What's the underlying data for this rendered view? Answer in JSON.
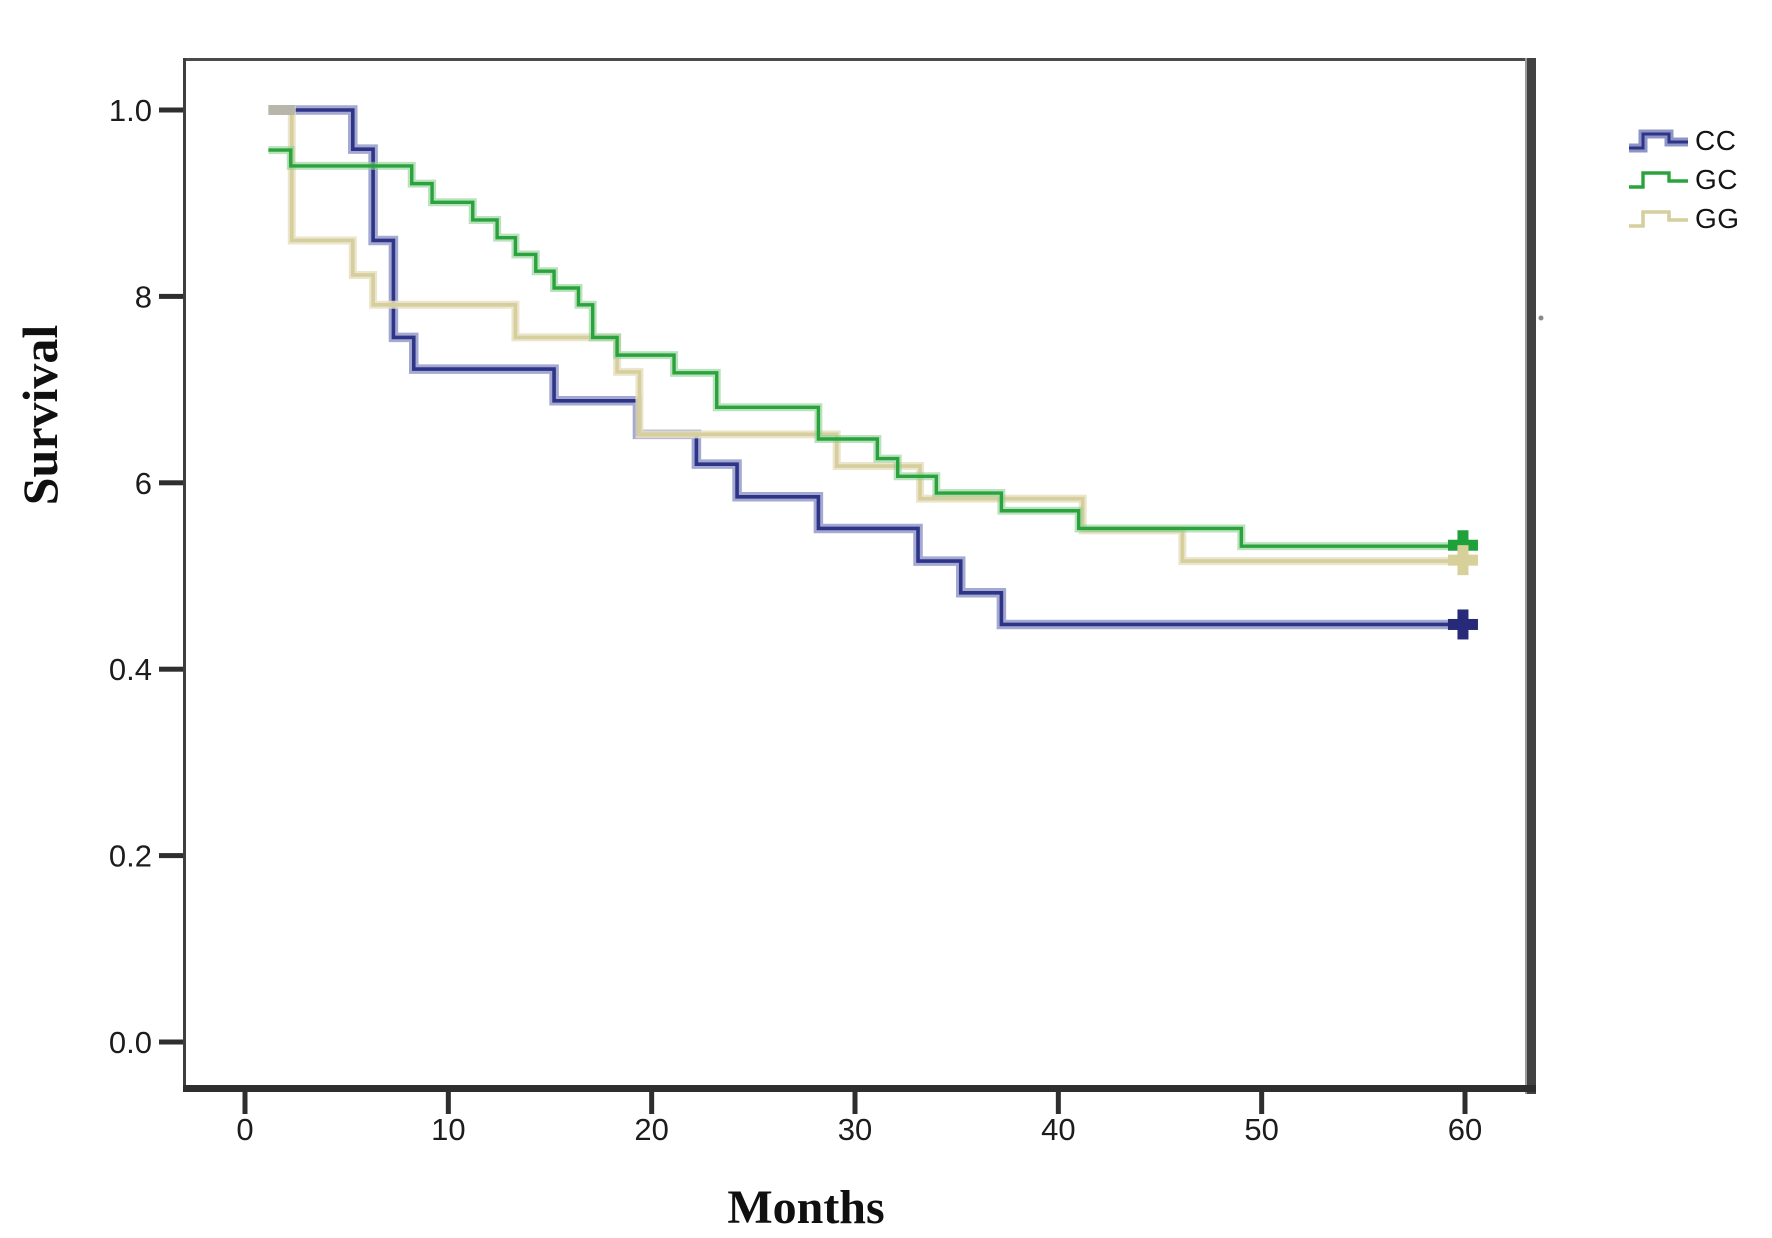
{
  "figure": {
    "y_axis_title": "Survival",
    "x_axis_title": "Months",
    "legend": [
      {
        "id": "cc",
        "label": "CC"
      },
      {
        "id": "gc",
        "label": "GC"
      },
      {
        "id": "gg",
        "label": "GG"
      }
    ],
    "colors": {
      "cc_core": "#2e3487",
      "cc_halo": "#8d94c6",
      "gc_core": "#2aa33c",
      "gc_halo": "#8fd096",
      "gg_core": "#d6cf9d",
      "gg_halo": "#e6e1c2",
      "start_cap_gray": "#b8b5aa"
    }
  },
  "chart_data": {
    "type": "line",
    "subtype": "kaplan-meier-step",
    "title": "",
    "xlabel": "Months",
    "ylabel": "Survival",
    "xlim": [
      -3,
      63.2
    ],
    "ylim": [
      -0.05,
      1.056
    ],
    "grid": false,
    "legend_position": "outside-upper-right",
    "x_ticks": [
      {
        "value": 0,
        "label": "0"
      },
      {
        "value": 10,
        "label": "10"
      },
      {
        "value": 20,
        "label": "20"
      },
      {
        "value": 30,
        "label": "30"
      },
      {
        "value": 40,
        "label": "40"
      },
      {
        "value": 50,
        "label": "50"
      },
      {
        "value": 60,
        "label": "60"
      }
    ],
    "y_ticks": [
      {
        "value": 1.0,
        "label": "1.0"
      },
      {
        "value": 0.8,
        "label": "8"
      },
      {
        "value": 0.6,
        "label": "6"
      },
      {
        "value": 0.4,
        "label": "0.4"
      },
      {
        "value": 0.2,
        "label": "0.2"
      },
      {
        "value": 0.0,
        "label": "0.0"
      }
    ],
    "start_cap": {
      "from_month": 1.15,
      "to_month": 2.45,
      "survival": 1.0,
      "color": "#b8b5aa"
    },
    "draw_order": [
      "CC",
      "GG",
      "GC"
    ],
    "series": [
      {
        "name": "CC",
        "color": "#2e3487",
        "halo": "#8d94c6",
        "end_month": 60.6,
        "censor": {
          "month": 59.9,
          "survival": 0.448,
          "color": "#272a78"
        },
        "steps": [
          [
            2.4,
            1.0
          ],
          [
            5.3,
            0.958
          ],
          [
            6.3,
            0.86
          ],
          [
            7.3,
            0.756
          ],
          [
            8.3,
            0.722
          ],
          [
            15.2,
            0.688
          ],
          [
            19.3,
            0.652
          ],
          [
            22.2,
            0.62
          ],
          [
            24.2,
            0.585
          ],
          [
            28.2,
            0.551
          ],
          [
            33.1,
            0.516
          ],
          [
            35.2,
            0.482
          ],
          [
            37.2,
            0.448
          ]
        ]
      },
      {
        "name": "GC",
        "color": "#2aa33c",
        "halo": "#8fd096",
        "end_month": 60.6,
        "censor": {
          "month": 59.9,
          "survival": 0.533,
          "color": "#1ea13a"
        },
        "steps": [
          [
            1.15,
            0.957
          ],
          [
            2.25,
            0.94
          ],
          [
            8.2,
            0.921
          ],
          [
            9.2,
            0.901
          ],
          [
            11.2,
            0.882
          ],
          [
            12.4,
            0.863
          ],
          [
            13.3,
            0.845
          ],
          [
            14.3,
            0.827
          ],
          [
            15.2,
            0.809
          ],
          [
            16.4,
            0.791
          ],
          [
            17.1,
            0.756
          ],
          [
            18.3,
            0.737
          ],
          [
            21.1,
            0.718
          ],
          [
            23.2,
            0.681
          ],
          [
            28.2,
            0.647
          ],
          [
            31.1,
            0.626
          ],
          [
            32.1,
            0.607
          ],
          [
            34.0,
            0.589
          ],
          [
            37.2,
            0.57
          ],
          [
            41.0,
            0.551
          ],
          [
            49.0,
            0.532
          ]
        ]
      },
      {
        "name": "GG",
        "color": "#d6cf9d",
        "halo": "#e6e1c2",
        "end_month": 60.6,
        "censor": {
          "month": 59.9,
          "survival": 0.517,
          "color": "#d8d09b"
        },
        "steps": [
          [
            1.15,
            1.0
          ],
          [
            2.3,
            0.86
          ],
          [
            5.3,
            0.823
          ],
          [
            6.3,
            0.791
          ],
          [
            13.3,
            0.756
          ],
          [
            18.3,
            0.719
          ],
          [
            19.4,
            0.652
          ],
          [
            29.1,
            0.618
          ],
          [
            33.2,
            0.583
          ],
          [
            41.2,
            0.549
          ],
          [
            46.1,
            0.516
          ]
        ]
      }
    ]
  }
}
